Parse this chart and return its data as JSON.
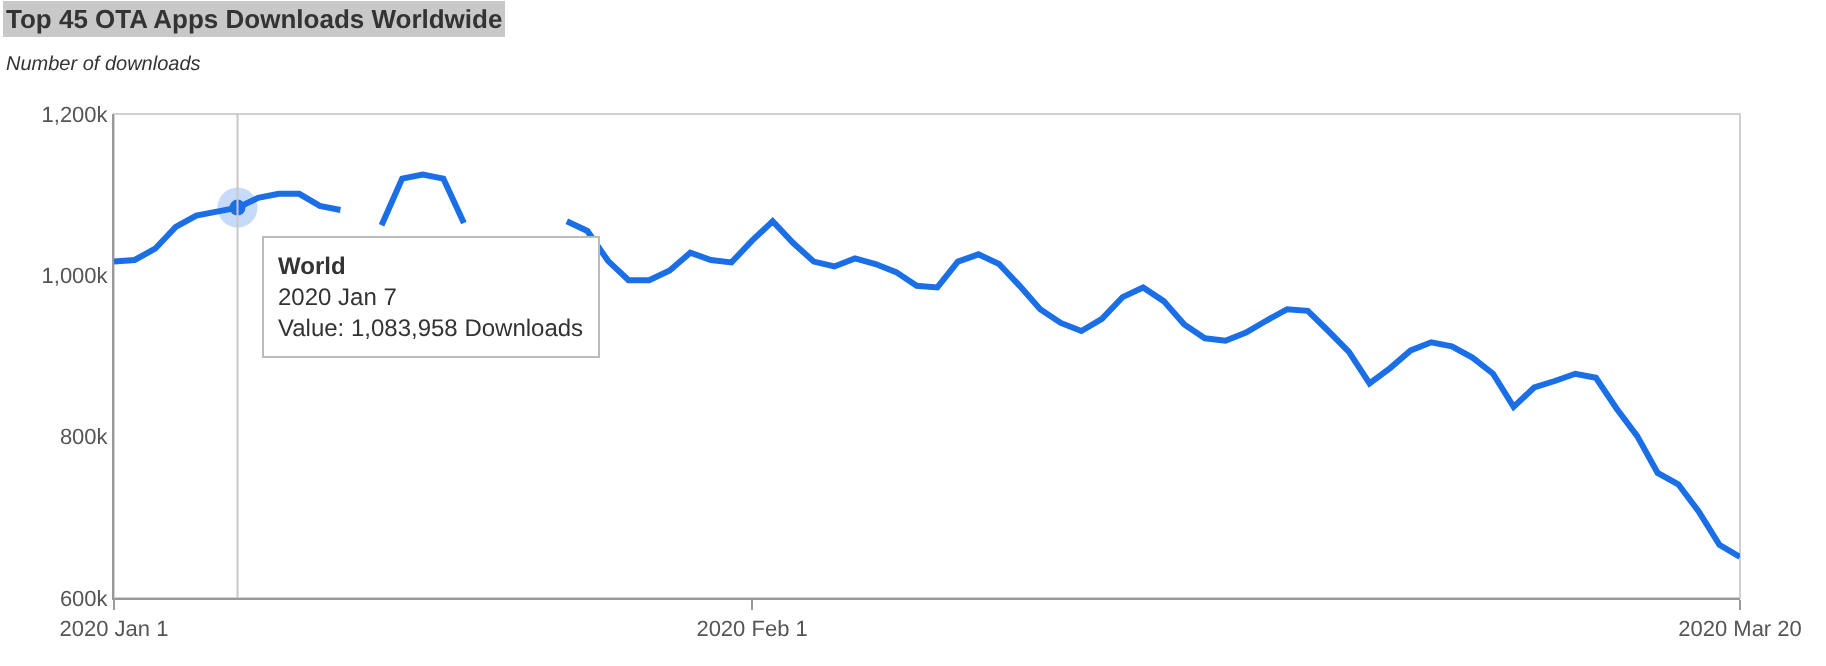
{
  "chart_data": {
    "type": "line",
    "title": "Top 45 OTA Apps Downloads Worldwide",
    "subtitle": "Number of downloads",
    "x": [
      "2020-01-01",
      "2020-01-02",
      "2020-01-03",
      "2020-01-04",
      "2020-01-05",
      "2020-01-06",
      "2020-01-07",
      "2020-01-08",
      "2020-01-09",
      "2020-01-10",
      "2020-01-11",
      "2020-01-12",
      "2020-01-13",
      "2020-01-14",
      "2020-01-15",
      "2020-01-16",
      "2020-01-17",
      "2020-01-18",
      "2020-01-19",
      "2020-01-20",
      "2020-01-21",
      "2020-01-22",
      "2020-01-23",
      "2020-01-24",
      "2020-01-25",
      "2020-01-26",
      "2020-01-27",
      "2020-01-28",
      "2020-01-29",
      "2020-01-30",
      "2020-01-31",
      "2020-02-01",
      "2020-02-02",
      "2020-02-03",
      "2020-02-04",
      "2020-02-05",
      "2020-02-06",
      "2020-02-07",
      "2020-02-08",
      "2020-02-09",
      "2020-02-10",
      "2020-02-11",
      "2020-02-12",
      "2020-02-13",
      "2020-02-14",
      "2020-02-15",
      "2020-02-16",
      "2020-02-17",
      "2020-02-18",
      "2020-02-19",
      "2020-02-20",
      "2020-02-21",
      "2020-02-22",
      "2020-02-23",
      "2020-02-24",
      "2020-02-25",
      "2020-02-26",
      "2020-02-27",
      "2020-02-28",
      "2020-02-29",
      "2020-03-01",
      "2020-03-02",
      "2020-03-03",
      "2020-03-04",
      "2020-03-05",
      "2020-03-06",
      "2020-03-07",
      "2020-03-08",
      "2020-03-09",
      "2020-03-10",
      "2020-03-11",
      "2020-03-12",
      "2020-03-13",
      "2020-03-14",
      "2020-03-15",
      "2020-03-16",
      "2020-03-17",
      "2020-03-18",
      "2020-03-19",
      "2020-03-20"
    ],
    "series": [
      {
        "name": null,
        "color": "#1a6ee6",
        "values": [
          1017000,
          1019000,
          1033000,
          1060000,
          1074000,
          1079000,
          1083958,
          1096000,
          1101000,
          1101000,
          1086000,
          1081000,
          null,
          1062000,
          1120000,
          1125000,
          1120000,
          1065000,
          null,
          null,
          null,
          null,
          1067000,
          1055000,
          1018000,
          994000,
          994000,
          1006000,
          1028000,
          1019000,
          1016000,
          1043000,
          1067000,
          1040000,
          1017000,
          1011000,
          1021000,
          1014000,
          1004000,
          987000,
          985000,
          1017000,
          1026000,
          1014000,
          987000,
          958000,
          941000,
          931000,
          946000,
          973000,
          985000,
          968000,
          939000,
          922000,
          919000,
          929000,
          944000,
          958000,
          956000,
          931000,
          905000,
          866000,
          885000,
          907000,
          917000,
          912000,
          898000,
          878000,
          837000,
          861000,
          869000,
          878000,
          873000,
          835000,
          801000,
          755000,
          741000,
          707000,
          666000,
          651000
        ]
      }
    ],
    "xlim": [
      "2020-01-01",
      "2020-03-20"
    ],
    "xticks": [
      {
        "value": "2020-01-01",
        "label": "2020 Jan 1"
      },
      {
        "value": "2020-02-01",
        "label": "2020 Feb 1"
      },
      {
        "value": "2020-03-20",
        "label": "2020 Mar 20"
      }
    ],
    "ylim": [
      600000,
      1200000
    ],
    "yticks": [
      {
        "value": 600000,
        "label": "600k"
      },
      {
        "value": 800000,
        "label": "800k"
      },
      {
        "value": 1000000,
        "label": "1,000k"
      },
      {
        "value": 1200000,
        "label": "1,200k"
      }
    ],
    "ref_lines": [
      {
        "axis": "x",
        "value": "2020-01-07",
        "color": "#c8c8c8"
      }
    ],
    "annotations": [
      {
        "text": "World\n2020 Jan 7\nValue: 1,083,958 Downloads",
        "x": "2020-01-07",
        "y": 1083958
      }
    ],
    "grid": false,
    "marker": "none",
    "line_style": "solid"
  }
}
